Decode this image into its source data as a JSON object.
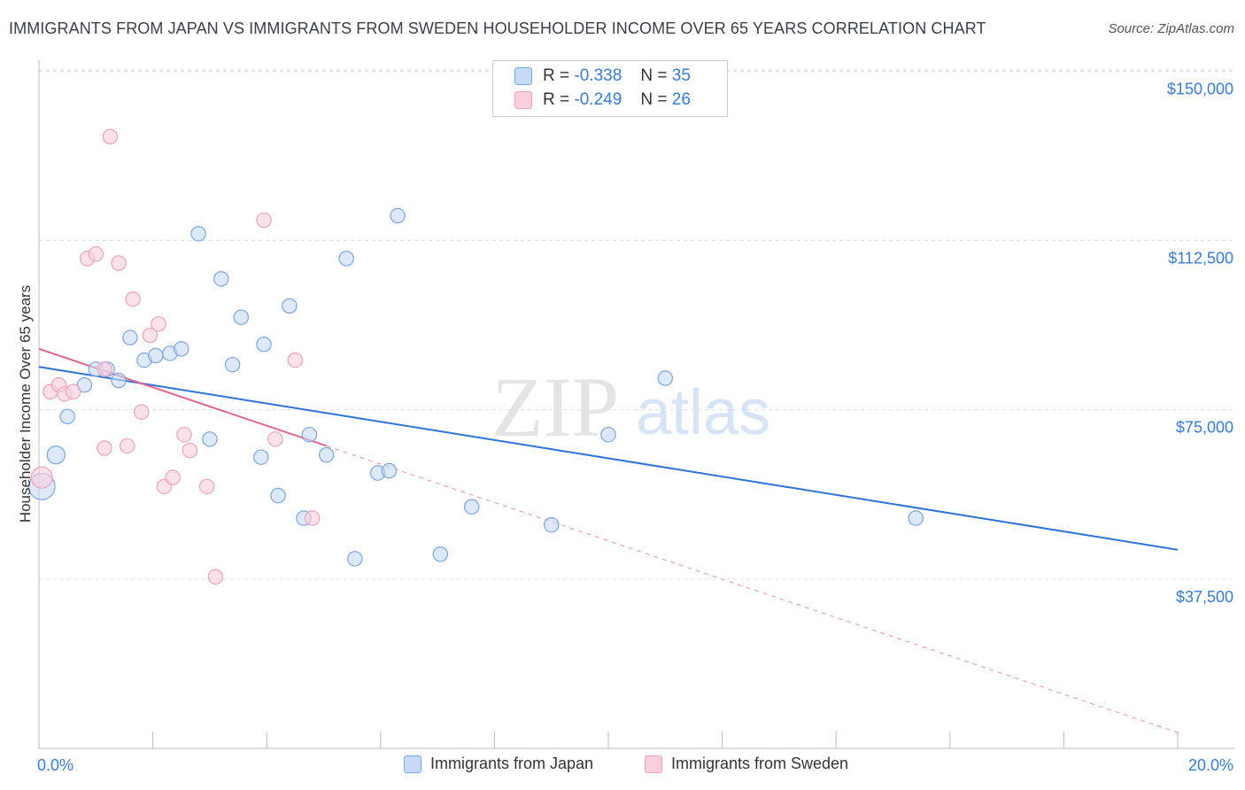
{
  "title": "IMMIGRANTS FROM JAPAN VS IMMIGRANTS FROM SWEDEN HOUSEHOLDER INCOME OVER 65 YEARS CORRELATION CHART",
  "source": "Source: ZipAtlas.com",
  "watermark": {
    "zip": "ZIP",
    "atlas": "atlas"
  },
  "legend": {
    "japan": {
      "r_label": "R =",
      "r_value": "-0.338",
      "n_label": "N =",
      "n_value": "35"
    },
    "sweden": {
      "r_label": "R =",
      "r_value": "-0.249",
      "n_label": "N =",
      "n_value": "26"
    }
  },
  "colors": {
    "japan_fill": "#c6d9f5",
    "japan_stroke": "#7aa6e0",
    "japan_line": "#2f73d6",
    "sweden_fill": "#f9cfdc",
    "sweden_stroke": "#eda2ba",
    "sweden_line": "#e06590",
    "grid": "#dddddd",
    "axis_text": "#3a7bd5"
  },
  "chart_data": {
    "type": "scatter",
    "title": "IMMIGRANTS FROM JAPAN VS IMMIGRANTS FROM SWEDEN HOUSEHOLDER INCOME OVER 65 YEARS CORRELATION CHART",
    "xlabel": "",
    "ylabel": "Householder Income Over 65 years",
    "xlim": [
      0,
      20
    ],
    "ylim": [
      0,
      154000
    ],
    "x_tick_labels": {
      "min": "0.0%",
      "max": "20.0%"
    },
    "y_ticks": [
      37500,
      75000,
      112500,
      150000
    ],
    "y_tick_labels": [
      "$37,500",
      "$75,000",
      "$112,500",
      "$150,000"
    ],
    "series": [
      {
        "name": "Immigrants from Japan",
        "key": "japan",
        "points": [
          [
            0.05,
            58000,
            1.5
          ],
          [
            0.3,
            65000,
            1.0
          ],
          [
            0.5,
            73500,
            0.8
          ],
          [
            0.8,
            80500,
            0.8
          ],
          [
            1.0,
            84000,
            0.8
          ],
          [
            1.2,
            84000,
            0.8
          ],
          [
            1.4,
            81500,
            0.8
          ],
          [
            1.6,
            91000,
            0.8
          ],
          [
            1.85,
            86000,
            0.8
          ],
          [
            2.05,
            87000,
            0.8
          ],
          [
            2.3,
            87500,
            0.8
          ],
          [
            2.5,
            88500,
            0.8
          ],
          [
            2.8,
            114000,
            0.8
          ],
          [
            3.0,
            68500,
            0.8
          ],
          [
            3.2,
            104000,
            0.8
          ],
          [
            3.4,
            85000,
            0.8
          ],
          [
            3.55,
            95500,
            0.8
          ],
          [
            3.9,
            64500,
            0.8
          ],
          [
            3.95,
            89500,
            0.8
          ],
          [
            4.2,
            56000,
            0.8
          ],
          [
            4.4,
            98000,
            0.8
          ],
          [
            4.65,
            51000,
            0.8
          ],
          [
            4.75,
            69500,
            0.8
          ],
          [
            5.05,
            65000,
            0.8
          ],
          [
            5.4,
            108500,
            0.8
          ],
          [
            5.55,
            42000,
            0.8
          ],
          [
            5.95,
            61000,
            0.8
          ],
          [
            6.15,
            61500,
            0.8
          ],
          [
            6.3,
            118000,
            0.8
          ],
          [
            7.05,
            43000,
            0.8
          ],
          [
            7.6,
            53500,
            0.8
          ],
          [
            9.0,
            49500,
            0.8
          ],
          [
            10.0,
            69500,
            0.8
          ],
          [
            11.0,
            82000,
            0.8
          ],
          [
            15.4,
            51000,
            0.8
          ]
        ],
        "trend": {
          "x0": 0,
          "y0": 84500,
          "x1": 20,
          "y1": 44000
        }
      },
      {
        "name": "Immigrants from Sweden",
        "key": "sweden",
        "points": [
          [
            0.05,
            60000,
            1.2
          ],
          [
            0.2,
            79000,
            0.8
          ],
          [
            0.35,
            80500,
            0.8
          ],
          [
            0.45,
            78500,
            0.8
          ],
          [
            0.6,
            79000,
            0.8
          ],
          [
            0.85,
            108500,
            0.8
          ],
          [
            1.0,
            109500,
            0.8
          ],
          [
            1.15,
            84000,
            0.8
          ],
          [
            1.15,
            66500,
            0.8
          ],
          [
            1.25,
            135500,
            0.8
          ],
          [
            1.4,
            107500,
            0.8
          ],
          [
            1.55,
            67000,
            0.8
          ],
          [
            1.65,
            99500,
            0.8
          ],
          [
            1.8,
            74500,
            0.8
          ],
          [
            1.95,
            91500,
            0.8
          ],
          [
            2.1,
            94000,
            0.8
          ],
          [
            2.2,
            58000,
            0.8
          ],
          [
            2.35,
            60000,
            0.8
          ],
          [
            2.55,
            69500,
            0.8
          ],
          [
            2.65,
            66000,
            0.8
          ],
          [
            2.95,
            58000,
            0.8
          ],
          [
            3.1,
            38000,
            0.8
          ],
          [
            3.95,
            117000,
            0.8
          ],
          [
            4.15,
            68500,
            0.8
          ],
          [
            4.5,
            86000,
            0.8
          ],
          [
            4.8,
            51000,
            0.8
          ]
        ],
        "trend": {
          "x0": 0,
          "y0": 88500,
          "x1": 5.05,
          "y1": 67000,
          "dash_x1": 20,
          "dash_y1": 3500
        }
      }
    ]
  }
}
